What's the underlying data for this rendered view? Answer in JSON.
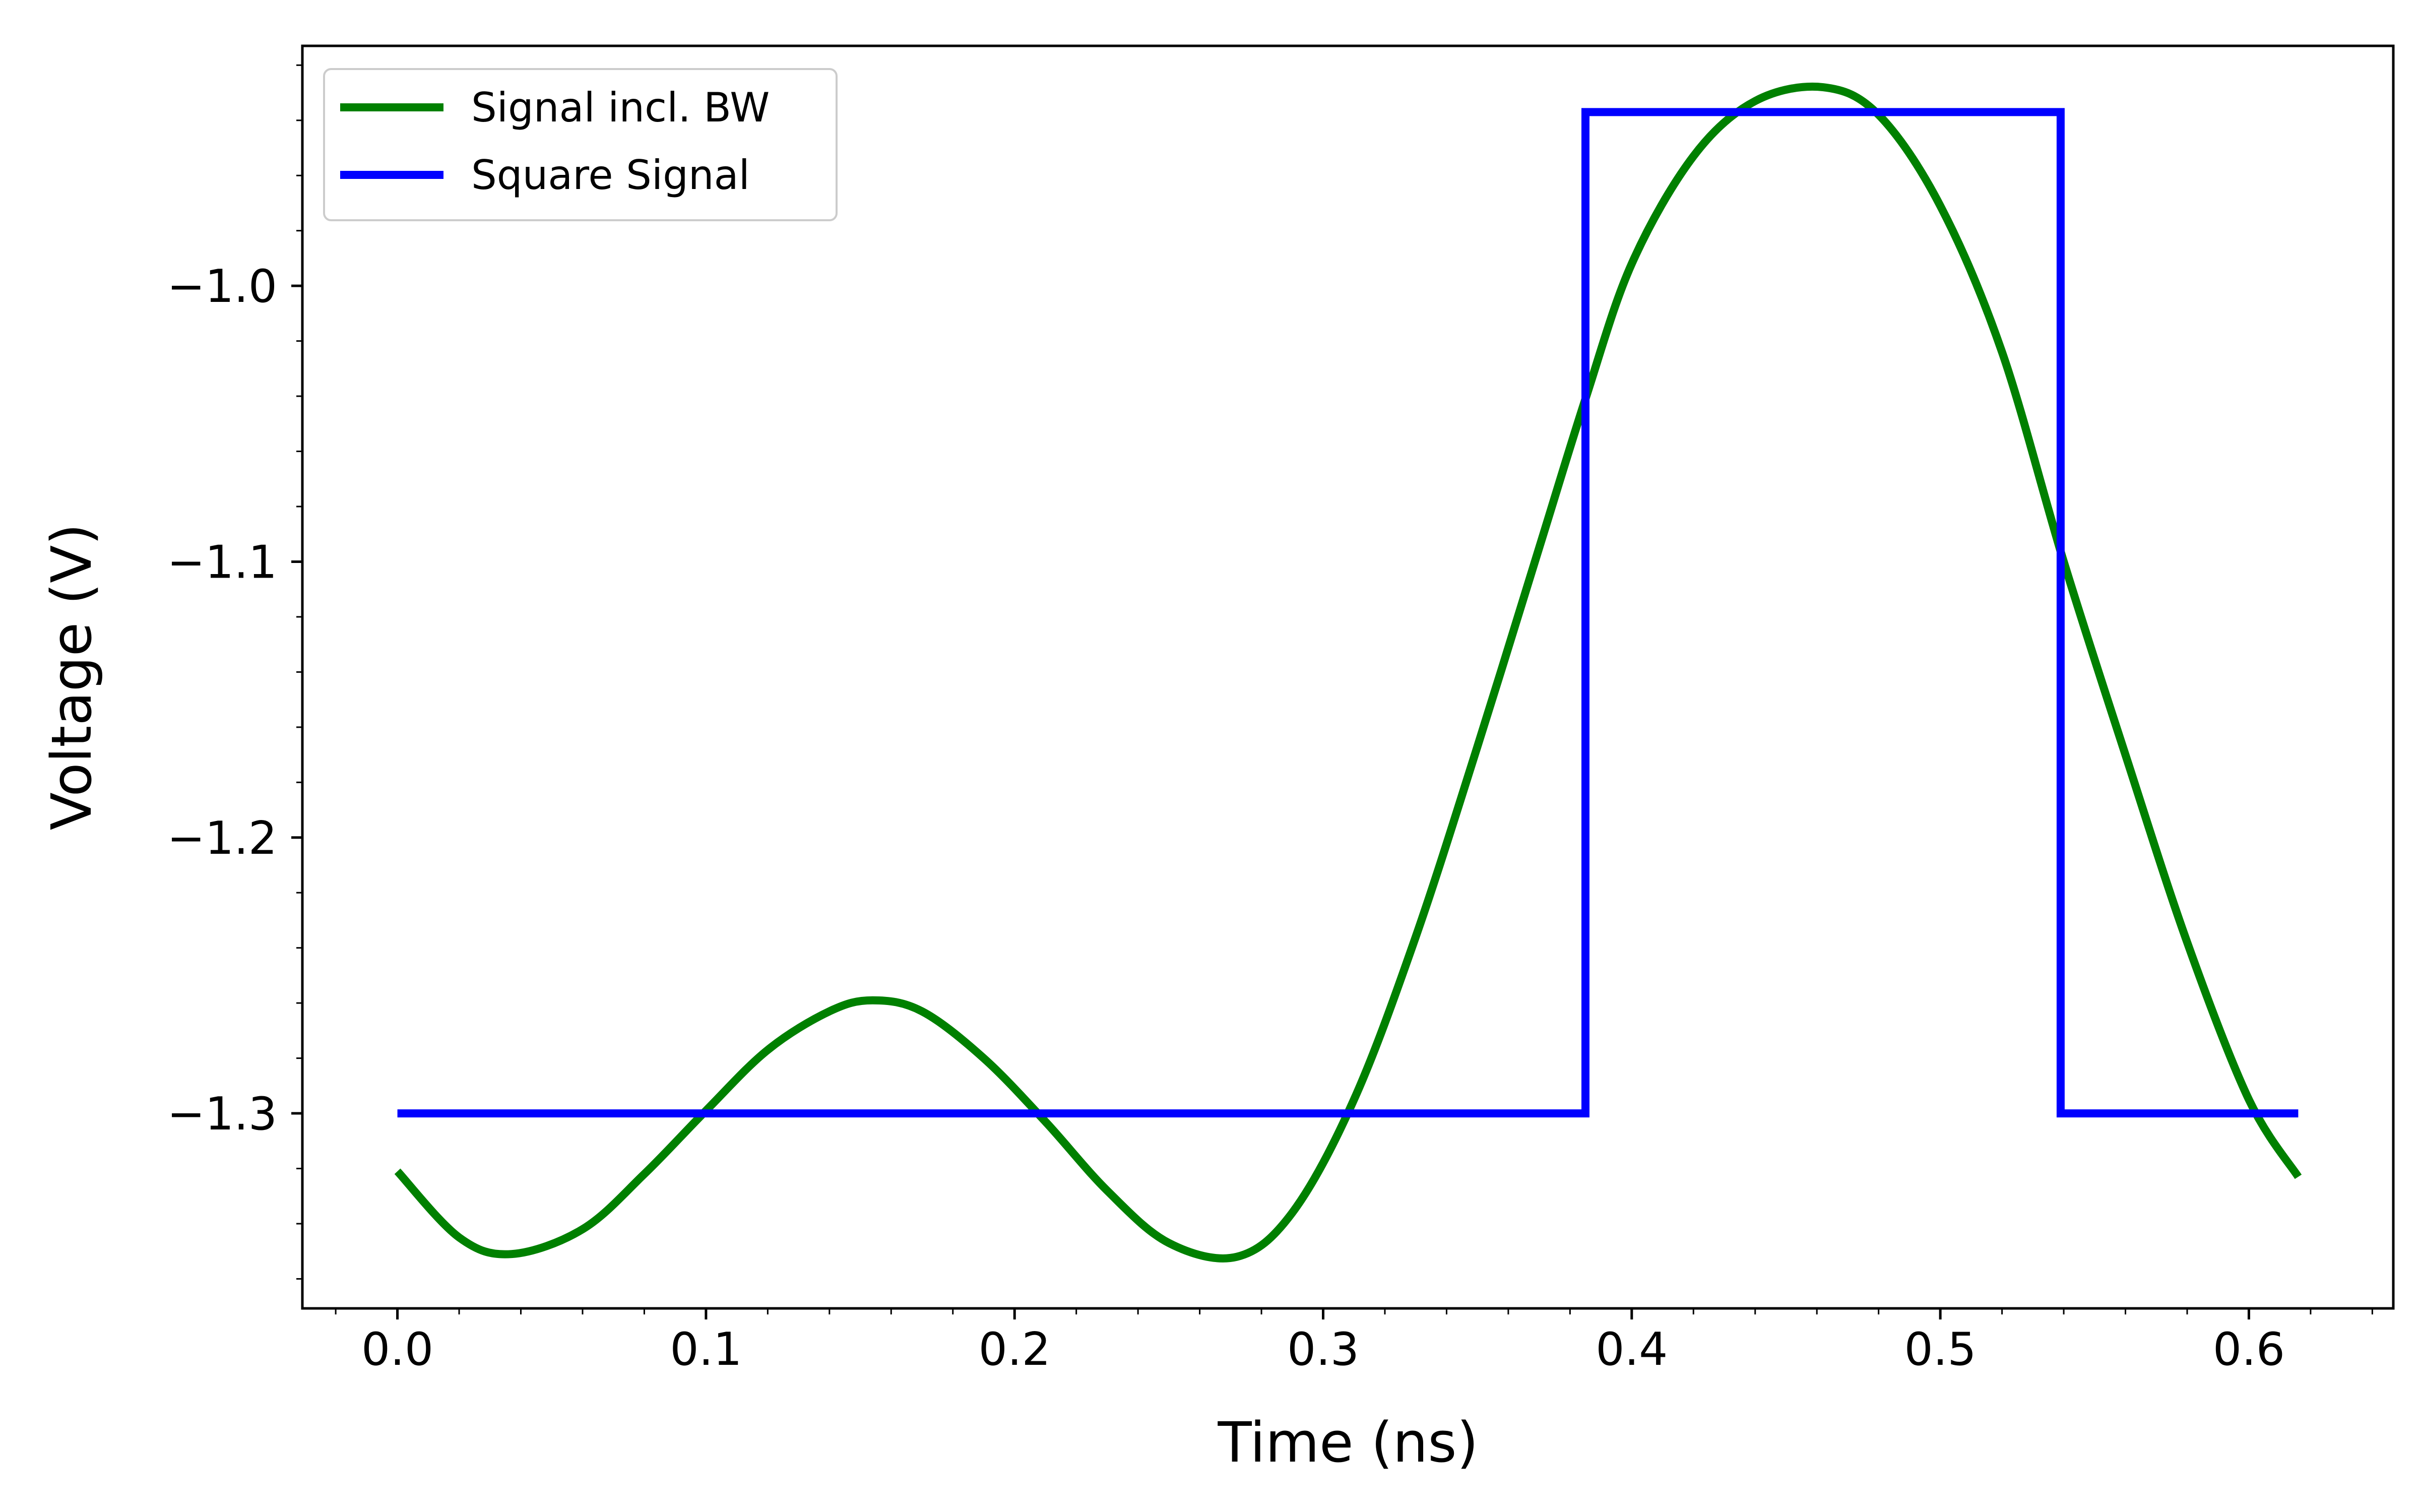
{
  "chart_data": {
    "type": "line",
    "title": "",
    "xlabel": "Time (ns)",
    "ylabel": "Voltage (V)",
    "xlim": [
      -0.0308,
      0.6468
    ],
    "ylim": [
      -1.3707,
      -0.913
    ],
    "xticks": [
      0.0,
      0.1,
      0.2,
      0.3,
      0.4,
      0.5,
      0.6
    ],
    "xtick_labels": [
      "0.0",
      "0.1",
      "0.2",
      "0.3",
      "0.4",
      "0.5",
      "0.6"
    ],
    "yticks": [
      -1.0,
      -1.1,
      -1.2,
      -1.3
    ],
    "ytick_labels": [
      "−1.0",
      "−1.1",
      "−1.2",
      "−1.3"
    ],
    "minor_ticks": true,
    "grid": false,
    "legend": "top-left",
    "series": [
      {
        "name": "Signal incl. BW",
        "color": "#008000",
        "x": [
          0.0,
          0.02,
          0.037,
          0.06,
          0.08,
          0.1,
          0.12,
          0.14,
          0.154,
          0.17,
          0.19,
          0.21,
          0.23,
          0.25,
          0.272,
          0.29,
          0.31,
          0.33,
          0.35,
          0.37,
          0.385,
          0.4,
          0.42,
          0.44,
          0.462,
          0.48,
          0.5,
          0.52,
          0.54,
          0.56,
          0.58,
          0.6,
          0.616
        ],
        "values": [
          -1.321,
          -1.345,
          -1.351,
          -1.342,
          -1.322,
          -1.299,
          -1.277,
          -1.263,
          -1.259,
          -1.263,
          -1.28,
          -1.303,
          -1.328,
          -1.347,
          -1.352,
          -1.336,
          -1.295,
          -1.236,
          -1.167,
          -1.095,
          -1.041,
          -0.992,
          -0.953,
          -0.933,
          -0.928,
          -0.938,
          -0.971,
          -1.024,
          -1.1,
          -1.17,
          -1.238,
          -1.295,
          -1.323
        ]
      },
      {
        "name": "Square Signal",
        "color": "#0000ff",
        "x": [
          0.0,
          0.385,
          0.385,
          0.539,
          0.539,
          0.616
        ],
        "values": [
          -1.3,
          -1.3,
          -0.937,
          -0.937,
          -1.3,
          -1.3
        ]
      }
    ]
  }
}
